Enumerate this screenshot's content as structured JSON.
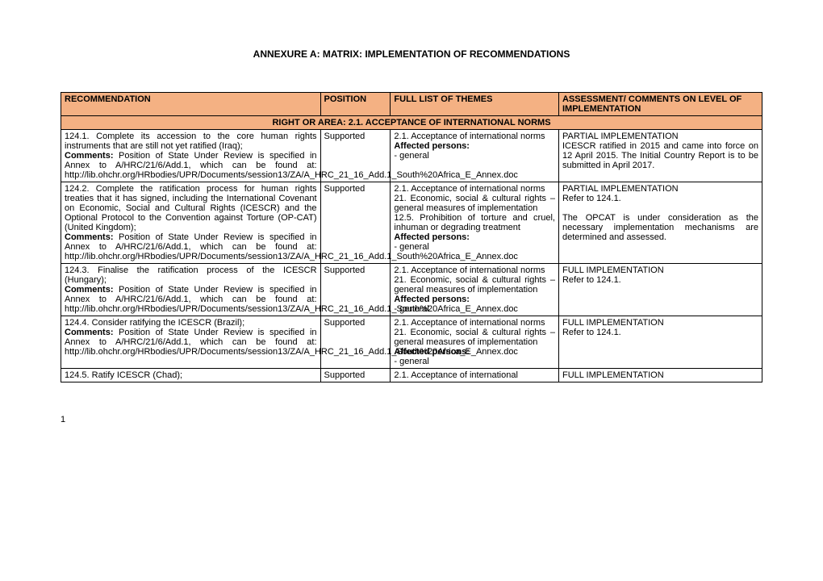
{
  "title": "ANNEXURE A:  MATRIX: IMPLEMENTATION OF RECOMMENDATIONS",
  "headers": {
    "h1": "RECOMMENDATION",
    "h2": "POSITION",
    "h3": "FULL LIST OF THEMES",
    "h4": "ASSESSMENT/ COMMENTS ON LEVEL OF IMPLEMENTATION"
  },
  "section": "RIGHT OR AREA: 2.1. ACCEPTANCE OF INTERNATIONAL NORMS",
  "rows": [
    {
      "rec_intro": "124.1. Complete its accession to the core human rights instruments that are still not yet ratified (Iraq);",
      "comments_label": "Comments:",
      "comments_text": " Position of State Under Review is specified in Annex to A/HRC/21/6/Add.1, which can be found at: http://lib.ohchr.org/HRbodies/UPR/Documents/session13/ZA/A_HRC_21_16_Add.1_South%20Africa_E_Annex.doc",
      "position": "Supported",
      "theme1": "2.1. Acceptance of international norms",
      "affected_label": "Affected persons:",
      "affected_text": "- general",
      "assessment": "PARTIAL IMPLEMENTATION\nICESCR ratified in 2015 and came into force on 12 April 2015. The Initial Country Report is to be submitted in April 2017."
    },
    {
      "rec_intro": "124.2. Complete the ratification process for human rights treaties that it has signed, including the International Covenant on Economic, Social and Cultural Rights (ICESCR) and the Optional Protocol to the Convention against Torture (OP-CAT) (United Kingdom);",
      "comments_label": "Comments:",
      "comments_text": " Position of State Under Review is specified in Annex to A/HRC/21/6/Add.1, which can be found at: http://lib.ohchr.org/HRbodies/UPR/Documents/session13/ZA/A_HRC_21_16_Add.1_South%20Africa_E_Annex.doc",
      "position": "Supported",
      "theme1": "2.1. Acceptance of international norms",
      "theme2": "21. Economic, social & cultural rights – general measures of implementation",
      "theme3": "12.5. Prohibition of torture and cruel, inhuman or degrading treatment",
      "affected_label": "Affected persons:",
      "affected_text": "- general",
      "assessment": "PARTIAL IMPLEMENTATION\nRefer to 124.1.\n\nThe OPCAT is under consideration as the necessary implementation mechanisms are determined and assessed."
    },
    {
      "rec_intro": "124.3. Finalise the ratification process of the ICESCR (Hungary);",
      "comments_label": "Comments:",
      "comments_text": " Position of State Under Review is specified in Annex to A/HRC/21/6/Add.1, which can be found at: http://lib.ohchr.org/HRbodies/UPR/Documents/session13/ZA/A_HRC_21_16_Add.1_South%20Africa_E_Annex.doc",
      "position": "Supported",
      "theme1": "2.1. Acceptance of international norms",
      "theme2": "21. Economic, social & cultural rights – general measures of implementation",
      "affected_label": "Affected persons:",
      "affected_text": "- general",
      "assessment": "FULL IMPLEMENTATION\nRefer to 124.1."
    },
    {
      "rec_intro": "124.4. Consider ratifying the ICESCR (Brazil);",
      "comments_label": "Comments:",
      "comments_text": " Position of State Under Review is specified in Annex to A/HRC/21/6/Add.1, which can be found at: http://lib.ohchr.org/HRbodies/UPR/Documents/session13/ZA/A_HRC_21_16_Add.1_South%20Africa_E_Annex.doc",
      "position": "Supported",
      "theme1": "2.1. Acceptance of international norms",
      "theme2": "21. Economic, social & cultural rights – general measures of implementation",
      "affected_label": "Affected persons:",
      "affected_text": "- general",
      "assessment": "FULL IMPLEMENTATION\nRefer to 124.1."
    },
    {
      "rec_intro": "124.5. Ratify ICESCR (Chad);",
      "position": "Supported",
      "theme1": "2.1. Acceptance of international",
      "assessment": "FULL IMPLEMENTATION"
    }
  ],
  "page_num": "1"
}
